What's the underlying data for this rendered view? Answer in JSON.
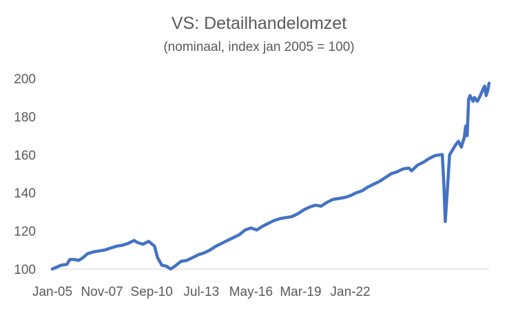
{
  "chart_data": {
    "type": "line",
    "title": "VS: Detailhandelomzet",
    "subtitle": "(nominaal, index jan 2005 = 100)",
    "xlabel": "",
    "ylabel": "",
    "ylim": [
      100,
      200
    ],
    "yticks": [
      100,
      120,
      140,
      160,
      180,
      200
    ],
    "xticks": [
      "Jan-05",
      "Nov-07",
      "Sep-10",
      "Jul-13",
      "May-16",
      "Mar-19",
      "Jan-22"
    ],
    "grid": false,
    "legend": "none",
    "colors": {
      "line": "#4472C4",
      "text": "#595959",
      "axis": "#D9D9D9"
    },
    "series": [
      {
        "values": [
          [
            0,
            100
          ],
          [
            6,
            102
          ],
          [
            10,
            102.5
          ],
          [
            12,
            105
          ],
          [
            15,
            105
          ],
          [
            18,
            104.5
          ],
          [
            21,
            106
          ],
          [
            24,
            108
          ],
          [
            28,
            109
          ],
          [
            32,
            109.5
          ],
          [
            36,
            110
          ],
          [
            40,
            111
          ],
          [
            44,
            112
          ],
          [
            48,
            112.5
          ],
          [
            52,
            113.5
          ],
          [
            56,
            115
          ],
          [
            58,
            114
          ],
          [
            62,
            113
          ],
          [
            66,
            114.5
          ],
          [
            70,
            112
          ],
          [
            72,
            106
          ],
          [
            75,
            102
          ],
          [
            78,
            101.5
          ],
          [
            81,
            100
          ],
          [
            84,
            101.5
          ],
          [
            88,
            104
          ],
          [
            92,
            104.5
          ],
          [
            96,
            106
          ],
          [
            100,
            107.5
          ],
          [
            104,
            108.5
          ],
          [
            108,
            110
          ],
          [
            112,
            112
          ],
          [
            116,
            113.5
          ],
          [
            120,
            115
          ],
          [
            124,
            116.5
          ],
          [
            128,
            118
          ],
          [
            132,
            120.5
          ],
          [
            136,
            121.5
          ],
          [
            140,
            120.5
          ],
          [
            144,
            122.5
          ],
          [
            148,
            124
          ],
          [
            152,
            125.5
          ],
          [
            156,
            126.5
          ],
          [
            160,
            127
          ],
          [
            164,
            127.5
          ],
          [
            168,
            129
          ],
          [
            172,
            131
          ],
          [
            176,
            132.5
          ],
          [
            180,
            133.5
          ],
          [
            184,
            133
          ],
          [
            188,
            135
          ],
          [
            192,
            136.5
          ],
          [
            196,
            137
          ],
          [
            200,
            137.5
          ],
          [
            204,
            138.5
          ],
          [
            208,
            140
          ],
          [
            212,
            141
          ],
          [
            216,
            143
          ],
          [
            220,
            144.5
          ],
          [
            224,
            146
          ],
          [
            228,
            148
          ],
          [
            232,
            150
          ],
          [
            236,
            151
          ],
          [
            240,
            152.5
          ],
          [
            244,
            153
          ],
          [
            246,
            151.5
          ],
          [
            250,
            154.5
          ],
          [
            254,
            156
          ],
          [
            258,
            158
          ],
          [
            262,
            159.5
          ],
          [
            266,
            160
          ],
          [
            267,
            160
          ],
          [
            268,
            145
          ],
          [
            269,
            125
          ],
          [
            271,
            148
          ],
          [
            272,
            160
          ],
          [
            274,
            162.5
          ],
          [
            276,
            165
          ],
          [
            278,
            167
          ],
          [
            280,
            164
          ],
          [
            282,
            169
          ],
          [
            283,
            175
          ],
          [
            284,
            170
          ],
          [
            285,
            189
          ],
          [
            286,
            191
          ],
          [
            288,
            188
          ],
          [
            289,
            190
          ],
          [
            291,
            188
          ],
          [
            293,
            191
          ],
          [
            295,
            194.5
          ],
          [
            296,
            196
          ],
          [
            297,
            191
          ],
          [
            298,
            193.5
          ],
          [
            299,
            197.5
          ]
        ]
      }
    ]
  }
}
